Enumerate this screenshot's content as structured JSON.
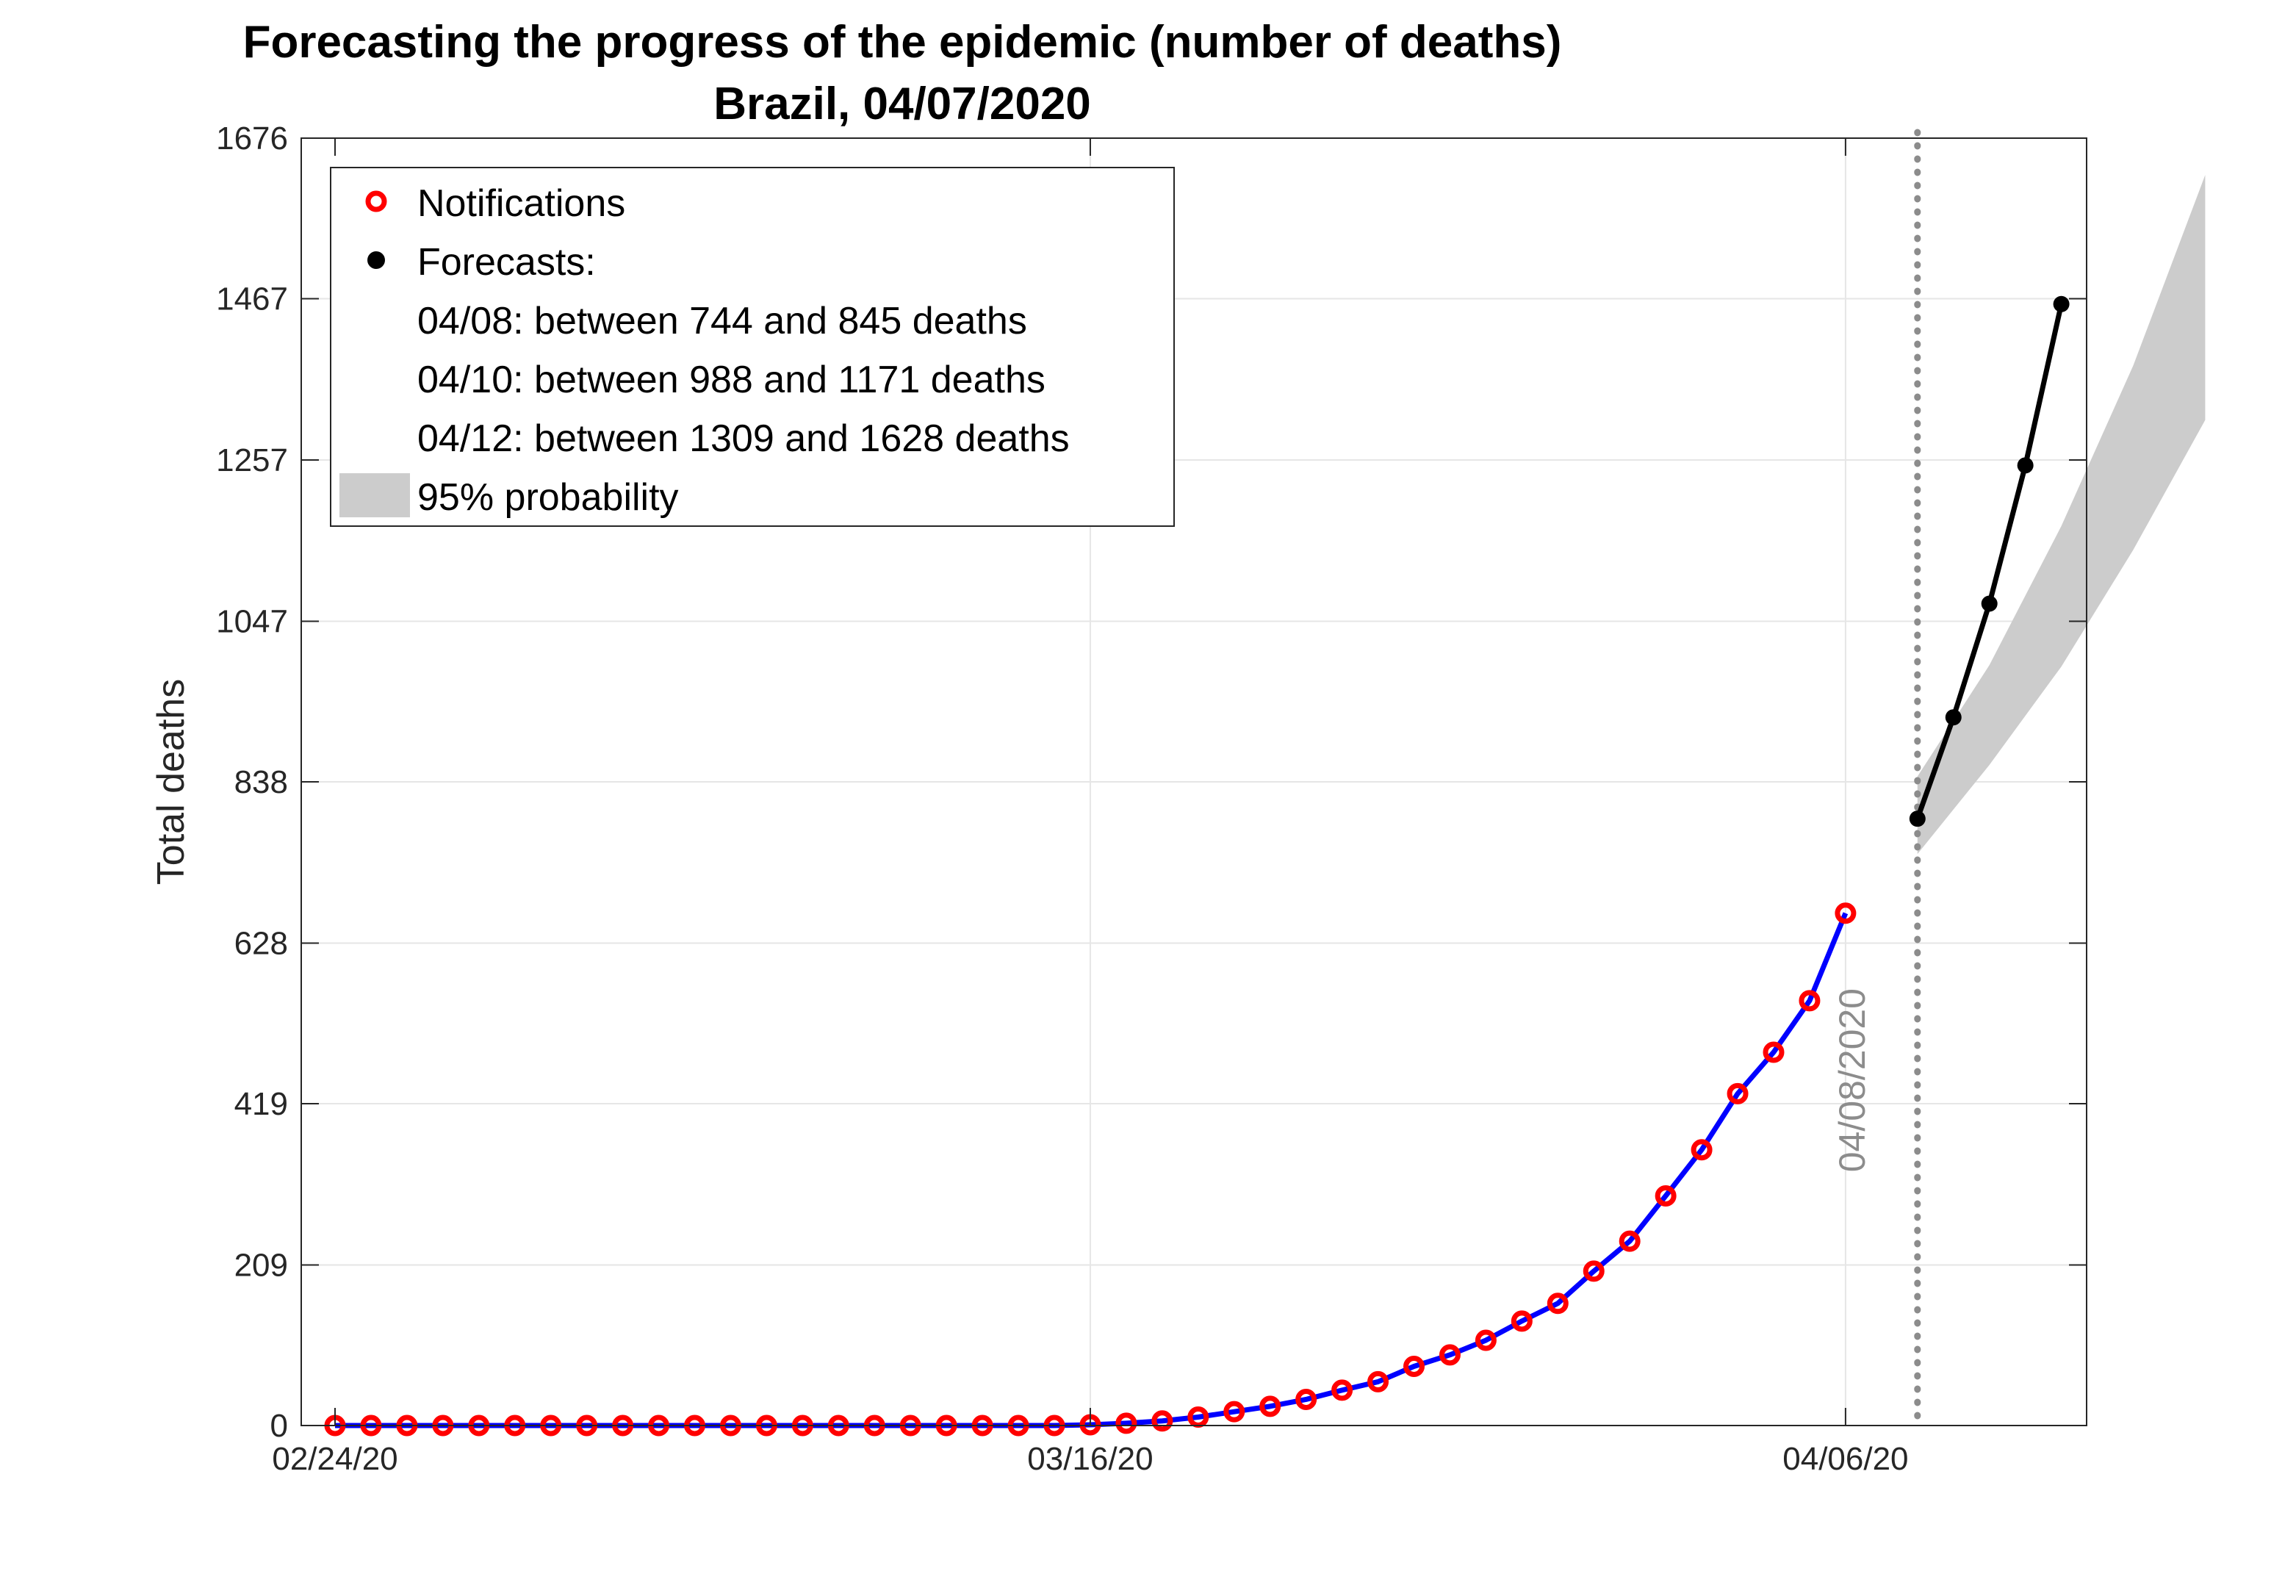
{
  "chart_data": {
    "type": "line",
    "title": "Forecasting the progress of the epidemic (number of deaths)",
    "subtitle": "Brazil, 04/07/2020",
    "ylabel": "Total deaths",
    "xlabel": "",
    "ylim": [
      0,
      1676
    ],
    "yticks": [
      "0",
      "209",
      "419",
      "628",
      "838",
      "1047",
      "1257",
      "1467",
      "1676"
    ],
    "x_start": "02/24/20",
    "x_end": "04/12/20",
    "xticks": [
      {
        "label": "02/24/20",
        "day": 0
      },
      {
        "label": "03/16/20",
        "day": 21
      },
      {
        "label": "04/06/20",
        "day": 42
      }
    ],
    "grid": true,
    "legend": {
      "position": "top-left",
      "notifications_label": "Notifications",
      "forecasts_label": "Forecasts:",
      "lines": [
        "04/08: between 744 and 845 deaths",
        "04/10: between 988 and 1171 deaths",
        "04/12: between 1309 and 1628 deaths"
      ],
      "probability_label": "95% probability"
    },
    "vertical_marker": {
      "label": "04/08/2020",
      "day": 44,
      "color": "#8c8c8c"
    },
    "series": [
      {
        "name": "Notifications",
        "color": "#0000ff",
        "marker_color": "#ff0000",
        "start_day": 0,
        "values": [
          0,
          0,
          0,
          0,
          0,
          0,
          0,
          0,
          0,
          0,
          0,
          0,
          0,
          0,
          0,
          0,
          0,
          0,
          0,
          0,
          0,
          1,
          3,
          6,
          11,
          18,
          25,
          34,
          46,
          57,
          77,
          92,
          111,
          136,
          159,
          201,
          240,
          299,
          359,
          432,
          486,
          553,
          667
        ]
      },
      {
        "name": "Forecasts",
        "color": "#000000",
        "start_day": 44,
        "values": [
          790,
          922,
          1070,
          1250,
          1460
        ],
        "band_lower": [
          744,
          860,
          988,
          1140,
          1309
        ],
        "band_upper": [
          845,
          990,
          1171,
          1380,
          1628
        ],
        "band_color": "#cccccc"
      }
    ]
  }
}
